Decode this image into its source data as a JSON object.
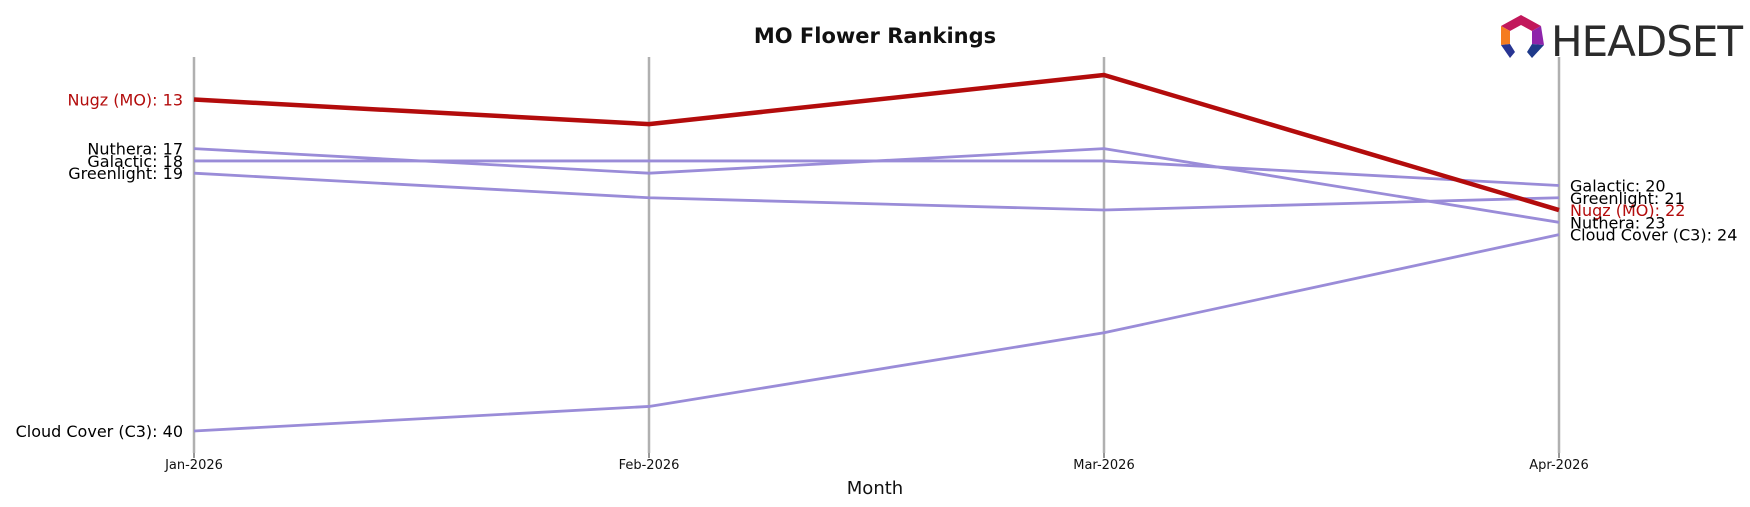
{
  "chart_data": {
    "type": "line",
    "title": "MO Flower Rankings",
    "xlabel": "Month",
    "ylabel": "",
    "categories": [
      "Jan-2026",
      "Feb-2026",
      "Mar-2026",
      "Apr-2026"
    ],
    "ylim": [
      42,
      11
    ],
    "y_inverted": true,
    "grid": "vertical lines at each month",
    "highlight_color": "#b30c0c",
    "series_color": "#9a8cd8",
    "series": [
      {
        "name": "Nugz (MO)",
        "values": [
          13,
          15,
          11,
          22
        ],
        "highlight": true
      },
      {
        "name": "Nuthera",
        "values": [
          17,
          19,
          17,
          23
        ],
        "highlight": false
      },
      {
        "name": "Galactic",
        "values": [
          18,
          18,
          18,
          20
        ],
        "highlight": false
      },
      {
        "name": "Greenlight",
        "values": [
          19,
          21,
          22,
          21
        ],
        "highlight": false
      },
      {
        "name": "Cloud Cover (C3)",
        "values": [
          40,
          38,
          32,
          24
        ],
        "highlight": false
      }
    ]
  },
  "logo": {
    "text": "HEADSET",
    "icon": "headset-hexagon-logo-icon"
  }
}
